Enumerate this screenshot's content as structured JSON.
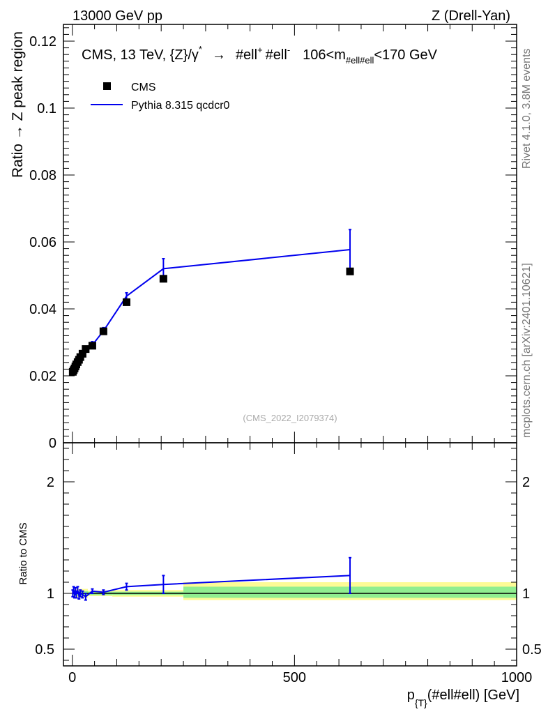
{
  "header": {
    "left": "13000 GeV pp",
    "right": "Z (Drell-Yan)"
  },
  "side_labels": {
    "rivet": "Rivet 4.1.0,  3.8M events",
    "mcplots": "mcplots.cern.ch [arXiv:2401.10621]"
  },
  "chart_data": [
    {
      "type": "scatter",
      "panel": "main",
      "title": "CMS, 13 TeV, {Z}/γ* → #ell⁺ #ell⁻,  106<m#ell#ell<170 GeV",
      "title_parts": {
        "main": "CMS, 13 TeV, {Z}/γ",
        "star": "*",
        "arrow": "→",
        "ell1": "#ell",
        "plus": "+",
        "ell2": "#ell",
        "minus": "-",
        "range_pre": "106<m",
        "sub": "#ell#ell",
        "range_post": "<170 GeV"
      },
      "ylabel": "Ratio → Z peak region",
      "xlabel": "",
      "xlim": [
        -20,
        1000
      ],
      "ylim": [
        0,
        0.125
      ],
      "y_ticks": [
        0,
        0.02,
        0.04,
        0.06,
        0.08,
        0.1,
        0.12
      ],
      "y_tick_labels": [
        "0",
        "0.02",
        "0.04",
        "0.06",
        "0.08",
        "0.1",
        "0.12"
      ],
      "x_ticks": [
        0,
        500,
        1000
      ],
      "legend_position": "top-left",
      "watermark": "(CMS_2022_I2079374)",
      "series": [
        {
          "name": "CMS",
          "kind": "markers",
          "color": "#000000",
          "x": [
            1,
            3,
            5,
            7,
            9,
            12,
            15,
            18,
            23,
            30,
            45,
            70,
            122,
            205,
            625
          ],
          "y": [
            0.0212,
            0.0217,
            0.0222,
            0.0228,
            0.0234,
            0.0241,
            0.0248,
            0.0256,
            0.0266,
            0.028,
            0.029,
            0.0333,
            0.042,
            0.049,
            0.0512
          ]
        },
        {
          "name": "Pythia 8.315 qcdcr0",
          "kind": "line",
          "color": "#0000ee",
          "x": [
            1,
            3,
            5,
            7,
            9,
            12,
            15,
            18,
            23,
            30,
            45,
            70,
            122,
            205,
            625
          ],
          "y": [
            0.0213,
            0.0218,
            0.0224,
            0.0229,
            0.0236,
            0.0243,
            0.0249,
            0.0256,
            0.0265,
            0.0277,
            0.0292,
            0.0334,
            0.0438,
            0.052,
            0.0577
          ],
          "err": [
            0.0007,
            0.0007,
            0.0007,
            0.0007,
            0.0007,
            0.0008,
            0.0008,
            0.0008,
            0.0009,
            0.001,
            0.001,
            0.001,
            0.001,
            0.003,
            0.006
          ]
        }
      ]
    },
    {
      "type": "line",
      "panel": "ratio",
      "ylabel": "Ratio to CMS",
      "xlabel": "p_{T}(#ell#ell) [GeV]",
      "xlabel_parts": {
        "p": "p",
        "sub": "{T}",
        "rest": "(#ell#ell) [GeV]"
      },
      "xlim": [
        -20,
        1000
      ],
      "ylim": [
        0.35,
        2.35
      ],
      "y_ticks": [
        0.5,
        1,
        2
      ],
      "y_tick_labels": [
        "0.5",
        "1",
        "2"
      ],
      "x_ticks": [
        0,
        500,
        1000
      ],
      "x_tick_labels": [
        "0",
        "500",
        "1000"
      ],
      "reference_line": 1,
      "bands": {
        "color_outer": "#fdfb96",
        "color_inner": "#90ee90",
        "segments": [
          {
            "x0": 0,
            "x1": 35,
            "outer": [
              0.96,
              1.04
            ],
            "inner": [
              0.98,
              1.02
            ]
          },
          {
            "x0": 35,
            "x1": 90,
            "outer": [
              0.975,
              1.025
            ],
            "inner": [
              0.985,
              1.015
            ]
          },
          {
            "x0": 90,
            "x1": 250,
            "outer": [
              0.97,
              1.03
            ],
            "inner": [
              0.985,
              1.015
            ]
          },
          {
            "x0": 250,
            "x1": 1000,
            "outer": [
              0.94,
              1.1
            ],
            "inner": [
              0.96,
              1.06
            ]
          }
        ]
      },
      "series": [
        {
          "name": "Pythia 8.315 qcdcr0",
          "color": "#0000ee",
          "x": [
            1,
            3,
            5,
            7,
            9,
            12,
            15,
            18,
            23,
            30,
            45,
            70,
            122,
            205,
            625
          ],
          "y": [
            1.0,
            1.03,
            0.99,
            1.02,
            0.99,
            1.03,
            0.98,
            1.0,
            0.99,
            0.97,
            1.02,
            1.01,
            1.06,
            1.08,
            1.16
          ],
          "err": [
            0.03,
            0.03,
            0.03,
            0.03,
            0.03,
            0.03,
            0.03,
            0.03,
            0.03,
            0.03,
            0.02,
            0.02,
            0.03,
            0.08,
            0.16
          ]
        }
      ]
    }
  ]
}
